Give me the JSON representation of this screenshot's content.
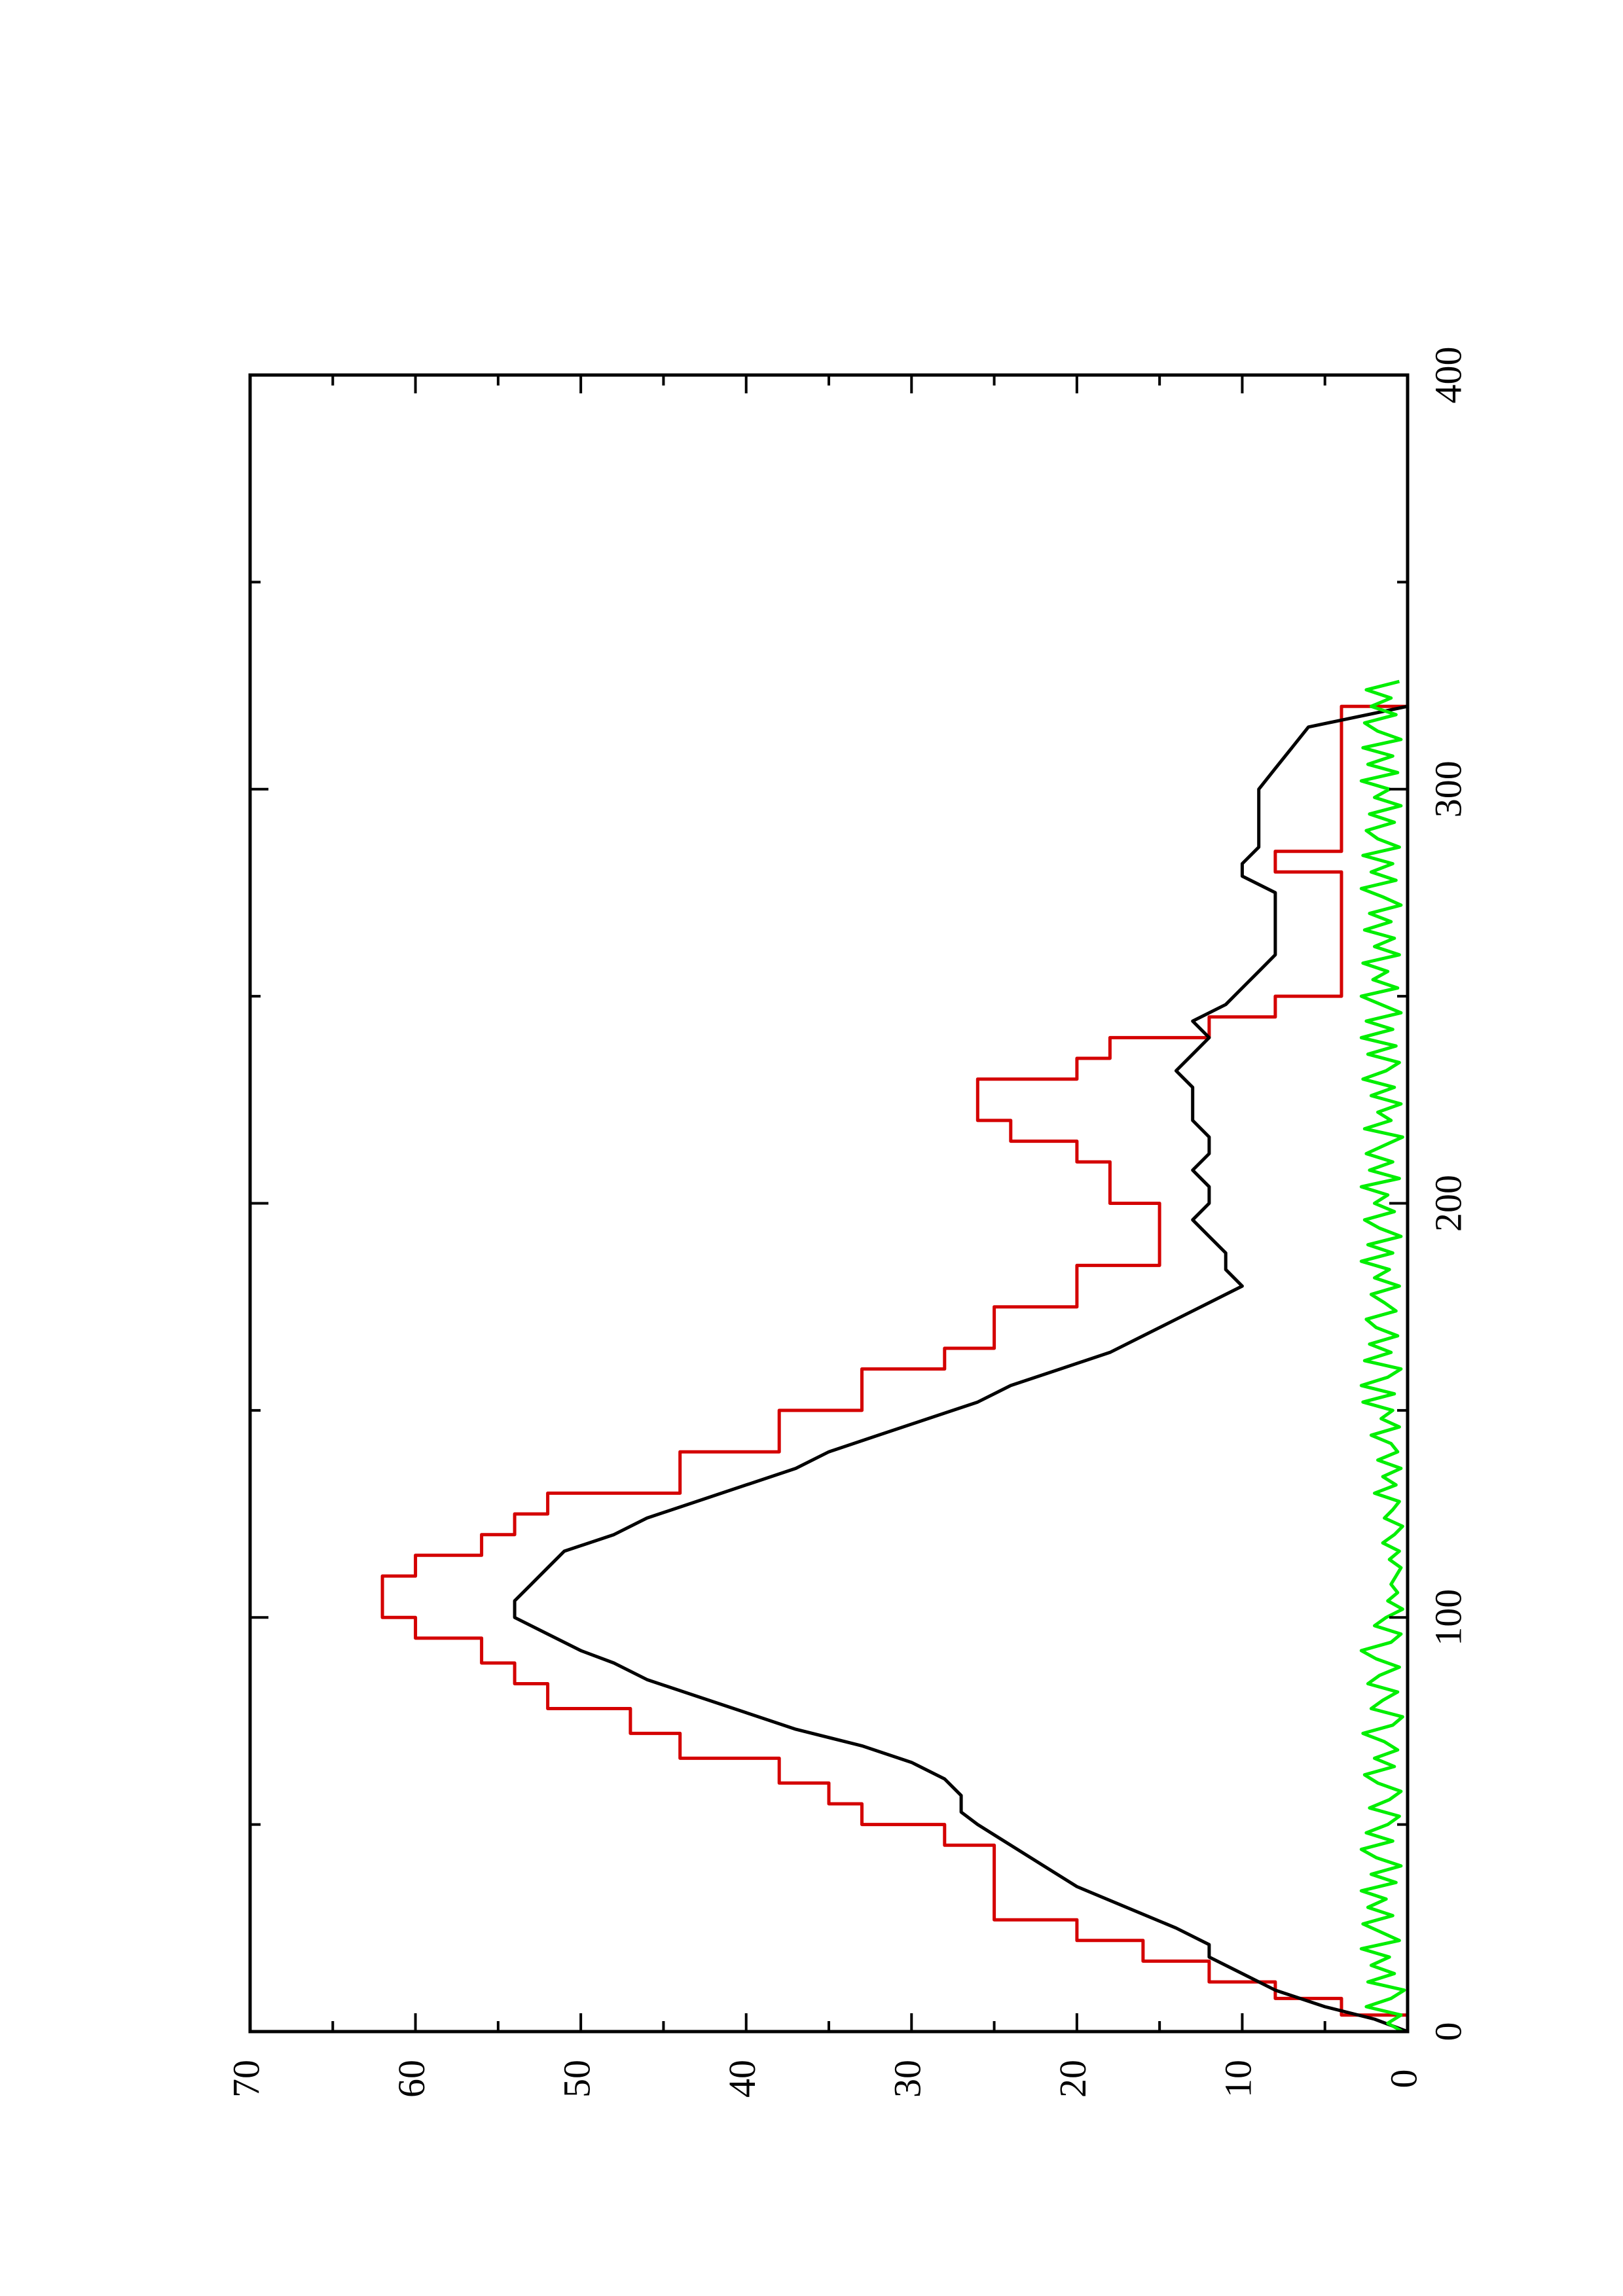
{
  "chart_data": {
    "type": "line",
    "orientation": "rotated-90-ccw",
    "title": "",
    "xlabel": "",
    "ylabel": "",
    "xlim": [
      0,
      400
    ],
    "ylim": [
      0,
      70
    ],
    "x_ticks": [
      0,
      100,
      200,
      300,
      400
    ],
    "x_minor_ticks": [
      50,
      150,
      250,
      350
    ],
    "y_ticks": [
      0,
      10,
      20,
      30,
      40,
      50,
      60,
      70
    ],
    "y_minor_ticks": [
      5,
      15,
      25,
      35,
      45,
      55,
      65
    ],
    "grid": false,
    "legend": "none",
    "series": [
      {
        "color": "#d40000",
        "step": true,
        "x": [
          0,
          4,
          8,
          12,
          17,
          22,
          27,
          35,
          45,
          50,
          55,
          60,
          66,
          72,
          78,
          84,
          89,
          95,
          100,
          105,
          110,
          115,
          120,
          125,
          130,
          140,
          150,
          160,
          165,
          175,
          185,
          195,
          200,
          210,
          215,
          220,
          225,
          230,
          235,
          240,
          245,
          250,
          255,
          260,
          265,
          270,
          275,
          280,
          285,
          290,
          295,
          300,
          305,
          310,
          315,
          320
        ],
        "y": [
          0,
          4,
          8,
          12,
          16,
          20,
          25,
          25,
          28,
          33,
          35,
          38,
          44,
          47,
          52,
          54,
          56,
          60,
          62,
          62,
          60,
          56,
          54,
          52,
          44,
          38,
          33,
          28,
          25,
          20,
          15,
          15,
          18,
          20,
          24,
          26,
          26,
          20,
          18,
          12,
          8,
          4,
          4,
          4,
          4,
          4,
          4,
          8,
          4,
          4,
          4,
          4,
          4,
          4,
          4,
          0
        ]
      },
      {
        "color": "#000000",
        "step": false,
        "x": [
          0,
          3,
          6,
          10,
          14,
          18,
          21,
          25,
          30,
          35,
          40,
          45,
          50,
          53,
          57,
          61,
          65,
          69,
          73,
          77,
          81,
          85,
          89,
          92,
          96,
          100,
          104,
          108,
          112,
          116,
          120,
          124,
          128,
          132,
          136,
          140,
          144,
          148,
          152,
          156,
          160,
          164,
          168,
          172,
          176,
          180,
          184,
          188,
          192,
          196,
          200,
          204,
          208,
          212,
          216,
          220,
          224,
          228,
          232,
          236,
          240,
          244,
          248,
          252,
          256,
          260,
          265,
          270,
          275,
          279,
          282,
          286,
          290,
          295,
          300,
          305,
          310,
          315,
          320
        ],
        "y": [
          0,
          2,
          5,
          8,
          10,
          12,
          12,
          14,
          17,
          20,
          22,
          24,
          26,
          27,
          27,
          28,
          30,
          33,
          37,
          40,
          43,
          46,
          48,
          50,
          52,
          54,
          54,
          53,
          52,
          51,
          48,
          46,
          43,
          40,
          37,
          35,
          32,
          29,
          26,
          24,
          21,
          18,
          16,
          14,
          12,
          10,
          11,
          11,
          12,
          13,
          12,
          12,
          13,
          12,
          12,
          13,
          13,
          13,
          14,
          13,
          12,
          13,
          11,
          10,
          9,
          8,
          8,
          8,
          8,
          10,
          10,
          9,
          9,
          9,
          9,
          8,
          7,
          6,
          0
        ]
      },
      {
        "color": "#00ee00",
        "step": false,
        "x": [
          0,
          2,
          4,
          6,
          8,
          10,
          12,
          14,
          16,
          18,
          20,
          22,
          24,
          26,
          28,
          30,
          32,
          34,
          36,
          38,
          40,
          42,
          44,
          46,
          48,
          50,
          52,
          54,
          56,
          58,
          60,
          62,
          64,
          66,
          68,
          70,
          72,
          74,
          76,
          78,
          80,
          82,
          84,
          86,
          88,
          90,
          92,
          94,
          96,
          98,
          100,
          102,
          104,
          106,
          108,
          110,
          112,
          114,
          116,
          118,
          120,
          122,
          124,
          126,
          128,
          130,
          132,
          134,
          136,
          138,
          140,
          142,
          144,
          146,
          148,
          150,
          152,
          154,
          156,
          158,
          160,
          162,
          164,
          166,
          168,
          170,
          172,
          174,
          176,
          178,
          180,
          182,
          184,
          186,
          188,
          190,
          192,
          194,
          196,
          198,
          200,
          202,
          204,
          206,
          208,
          210,
          212,
          214,
          216,
          218,
          220,
          222,
          224,
          226,
          228,
          230,
          232,
          234,
          236,
          238,
          240,
          242,
          244,
          246,
          248,
          250,
          252,
          254,
          256,
          258,
          260,
          262,
          264,
          266,
          268,
          270,
          272,
          274,
          276,
          278,
          280,
          282,
          284,
          286,
          288,
          290,
          292,
          294,
          296,
          298,
          300,
          302,
          304,
          306,
          308,
          310,
          312,
          314,
          316,
          318,
          320,
          322,
          324,
          326
        ],
        "y": [
          0.3,
          1.2,
          0.4,
          2.5,
          1.0,
          0.2,
          2.4,
          0.8,
          2.2,
          1.1,
          2.8,
          0.5,
          1.6,
          2.7,
          0.9,
          2.4,
          1.3,
          2.8,
          0.7,
          2.2,
          0.4,
          1.9,
          2.8,
          0.9,
          2.5,
          1.2,
          0.5,
          2.3,
          1.1,
          0.4,
          1.8,
          2.6,
          0.8,
          2.0,
          0.6,
          1.4,
          2.7,
          0.9,
          0.3,
          2.2,
          1.5,
          0.6,
          2.4,
          1.7,
          0.5,
          1.9,
          2.8,
          1.0,
          0.4,
          2.0,
          1.3,
          0.3,
          1.2,
          0.6,
          1.0,
          0.7,
          0.4,
          1.1,
          0.5,
          1.5,
          0.8,
          0.3,
          1.4,
          0.9,
          0.5,
          2.0,
          0.7,
          1.5,
          0.4,
          1.8,
          0.6,
          1.0,
          2.2,
          0.5,
          1.6,
          0.9,
          2.7,
          0.8,
          2.8,
          1.2,
          0.4,
          2.6,
          1.0,
          2.3,
          0.6,
          1.9,
          2.5,
          0.7,
          1.4,
          2.2,
          0.5,
          2.0,
          1.1,
          2.8,
          0.9,
          2.4,
          0.4,
          1.7,
          2.6,
          0.8,
          2.0,
          1.2,
          2.8,
          0.5,
          2.3,
          0.9,
          2.5,
          1.4,
          0.3,
          2.6,
          1.0,
          1.8,
          0.4,
          2.2,
          0.8,
          2.7,
          1.3,
          0.5,
          2.4,
          0.7,
          2.8,
          0.9,
          2.5,
          0.4,
          1.6,
          2.8,
          0.6,
          2.1,
          1.2,
          2.7,
          0.5,
          2.0,
          0.8,
          2.6,
          1.0,
          2.3,
          0.4,
          1.5,
          2.8,
          0.7,
          2.2,
          0.9,
          2.7,
          0.5,
          1.8,
          2.5,
          0.8,
          2.3,
          0.4,
          2.0,
          1.1,
          2.8,
          0.6,
          2.4,
          0.9,
          2.7,
          0.4,
          1.8,
          2.6,
          0.7,
          2.2,
          1.0,
          2.5,
          0.5
        ]
      }
    ]
  }
}
